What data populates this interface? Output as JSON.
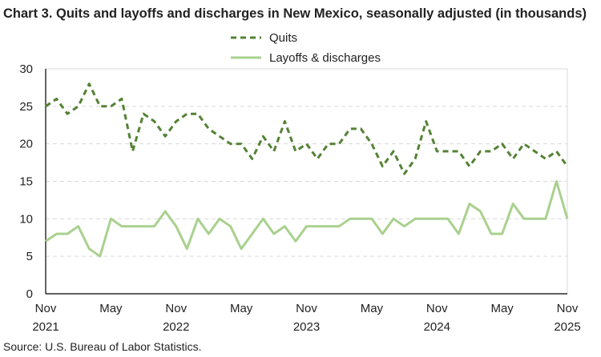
{
  "chart_data": {
    "type": "line",
    "title": "Chart 3. Quits and layoffs and discharges in New Mexico, seasonally adjusted (in thousands)",
    "xlabel": "",
    "ylabel": "",
    "ylim": [
      0,
      30
    ],
    "yticks": [
      "0",
      "5",
      "10",
      "15",
      "20",
      "25",
      "30"
    ],
    "grid": true,
    "legend_position": "top-center",
    "x_start": "Nov 2021",
    "x_end": "Nov 2025",
    "xtick_labels": [
      {
        "month": "Nov",
        "year": "2021"
      },
      {
        "month": "May",
        "year": ""
      },
      {
        "month": "Nov",
        "year": "2022"
      },
      {
        "month": "May",
        "year": ""
      },
      {
        "month": "Nov",
        "year": "2023"
      },
      {
        "month": "May",
        "year": ""
      },
      {
        "month": "Nov",
        "year": "2024"
      },
      {
        "month": "May",
        "year": ""
      },
      {
        "month": "Nov",
        "year": "2025"
      }
    ],
    "series": [
      {
        "name": "Quits",
        "color": "#548235",
        "style": "dashed",
        "values": [
          25,
          26,
          24,
          25,
          28,
          25,
          25,
          26,
          19,
          24,
          23,
          21,
          23,
          24,
          24,
          22,
          21,
          20,
          20,
          18,
          21,
          19,
          23,
          19,
          20,
          18,
          20,
          20,
          22,
          22,
          20,
          17,
          19,
          16,
          18,
          23,
          19,
          19,
          19,
          17,
          19,
          19,
          20,
          18,
          20,
          19,
          18,
          19,
          17
        ]
      },
      {
        "name": "Layoffs & discharges",
        "color": "#A9D18E",
        "style": "solid",
        "values": [
          7,
          8,
          8,
          9,
          6,
          5,
          10,
          9,
          9,
          9,
          9,
          11,
          9,
          6,
          10,
          8,
          10,
          9,
          6,
          8,
          10,
          8,
          9,
          7,
          9,
          9,
          9,
          9,
          10,
          10,
          10,
          8,
          10,
          9,
          10,
          10,
          10,
          10,
          8,
          12,
          11,
          8,
          8,
          12,
          10,
          10,
          10,
          15,
          10
        ]
      }
    ]
  },
  "source": "Source: U.S. Bureau of Labor Statistics."
}
